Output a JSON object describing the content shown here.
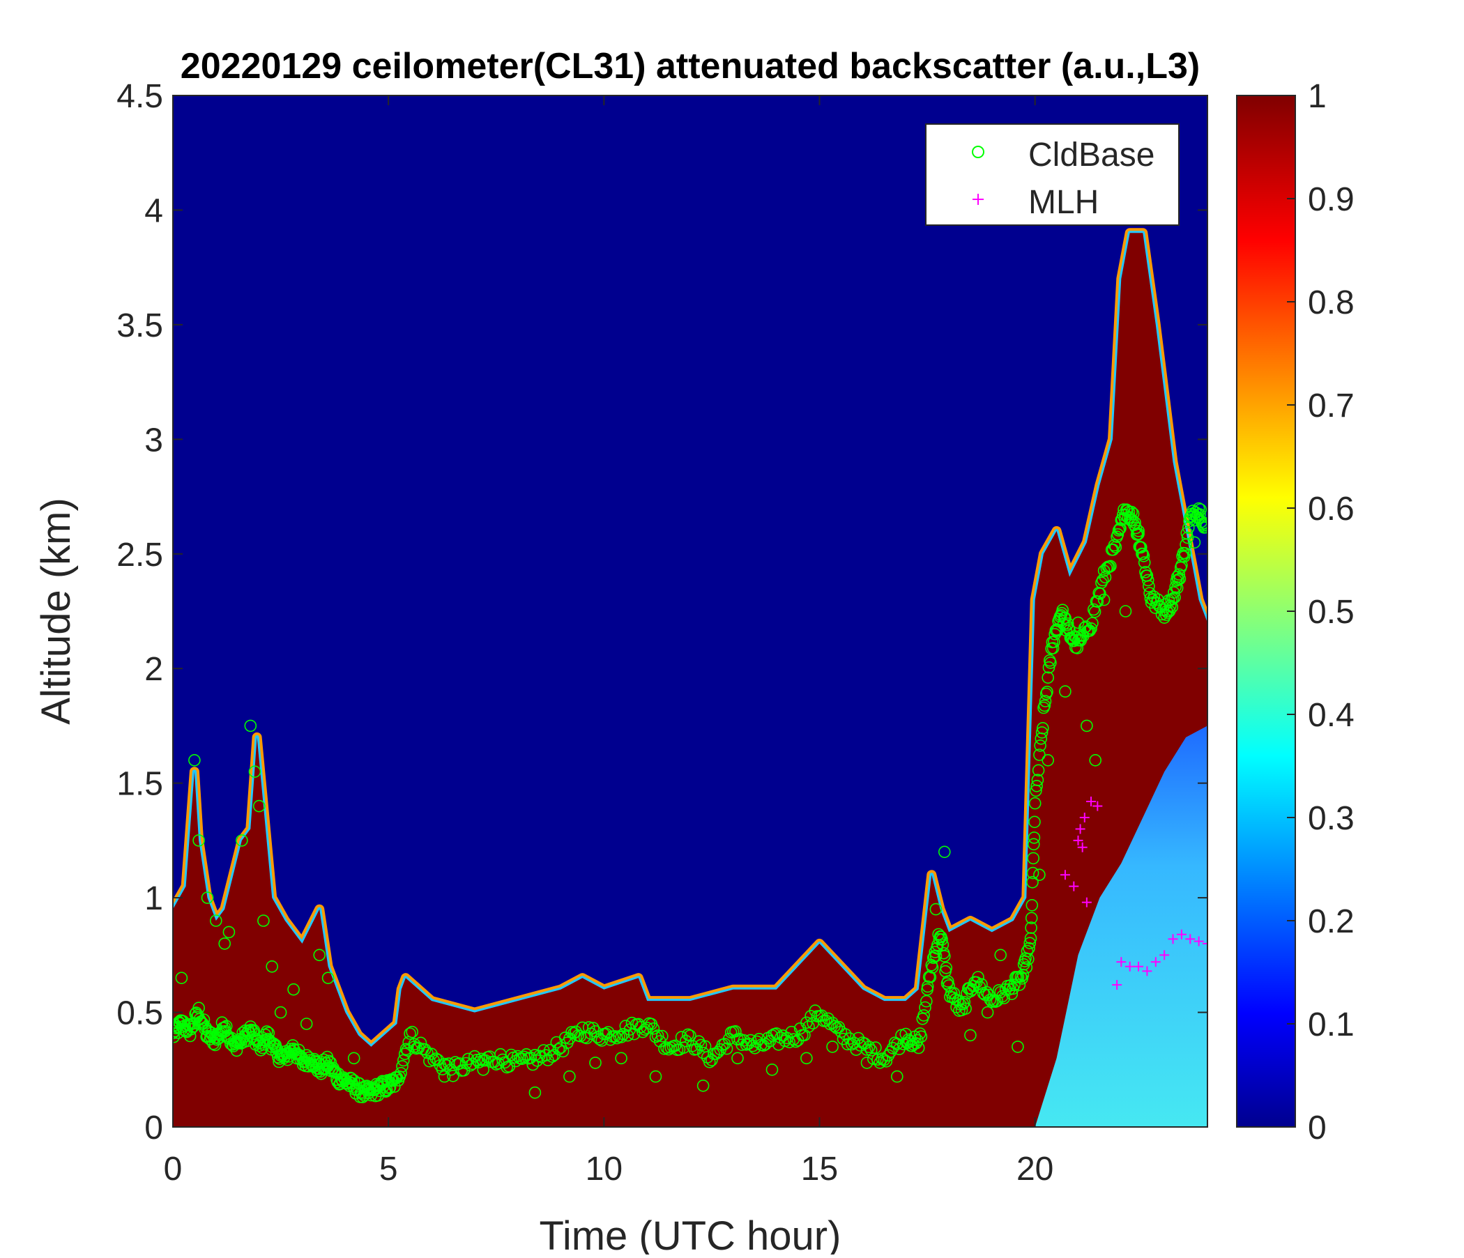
{
  "chart_data": {
    "type": "heatmap",
    "title": "20220129 ceilometer(CL31) attenuated backscatter (a.u.,L3)",
    "xlabel": "Time (UTC hour)",
    "ylabel": "Altitude (km)",
    "xlim": [
      0,
      24
    ],
    "ylim": [
      0,
      4.5
    ],
    "xticks": [
      0,
      5,
      10,
      15,
      20
    ],
    "yticks": [
      0,
      0.5,
      1,
      1.5,
      2,
      2.5,
      3,
      3.5,
      4,
      4.5
    ],
    "yticklabels": [
      "0",
      "0.5",
      "1",
      "1.5",
      "2",
      "2.5",
      "3",
      "3.5",
      "4",
      "4.5"
    ],
    "colorbar": {
      "colormap": "jet",
      "range": [
        0,
        1
      ],
      "ticks": [
        0,
        0.1,
        0.2,
        0.3,
        0.4,
        0.5,
        0.6,
        0.7,
        0.8,
        0.9,
        1
      ],
      "ticklabels": [
        "0",
        "0.1",
        "0.2",
        "0.3",
        "0.4",
        "0.5",
        "0.6",
        "0.7",
        "0.8",
        "0.9",
        "1"
      ]
    },
    "colors": {
      "background": "#00008f",
      "layer": "#800000",
      "cldbase": "#00ff00",
      "mlh": "#ff00ff",
      "cyan_low": "#40e0f0"
    },
    "legend": {
      "placement": "top-right",
      "entries": [
        {
          "label": "CldBase",
          "marker": "circle",
          "color": "#00ff00"
        },
        {
          "label": "MLH",
          "marker": "plus",
          "color": "#ff00ff"
        }
      ]
    },
    "layer_top": {
      "x": [
        0,
        0.3,
        0.5,
        0.6,
        0.8,
        1.0,
        1.2,
        1.4,
        1.6,
        1.8,
        1.95,
        2.1,
        2.3,
        2.6,
        3.0,
        3.4,
        3.6,
        4.0,
        4.3,
        4.6,
        4.9,
        5.2,
        5.3,
        5.4,
        6,
        7,
        8,
        9,
        9.5,
        10,
        10.8,
        11,
        12,
        13,
        14,
        14.5,
        15,
        15.5,
        16,
        16.5,
        17,
        17.3,
        17.6,
        17.8,
        18,
        18.5,
        19,
        19.5,
        19.8,
        20.0,
        20.2,
        20.5,
        20.8,
        21.2,
        21.5,
        21.8,
        22.0,
        22.2,
        22.5,
        22.8,
        23.0,
        23.2,
        23.5,
        23.8,
        24
      ],
      "y": [
        0.95,
        1.05,
        1.55,
        1.25,
        1.0,
        0.9,
        0.95,
        1.1,
        1.25,
        1.3,
        1.7,
        1.4,
        1.0,
        0.9,
        0.8,
        0.95,
        0.7,
        0.5,
        0.4,
        0.35,
        0.4,
        0.45,
        0.6,
        0.65,
        0.55,
        0.5,
        0.55,
        0.6,
        0.65,
        0.6,
        0.65,
        0.55,
        0.55,
        0.6,
        0.6,
        0.7,
        0.8,
        0.7,
        0.6,
        0.55,
        0.55,
        0.6,
        1.1,
        0.95,
        0.85,
        0.9,
        0.85,
        0.9,
        1.0,
        2.3,
        2.5,
        2.6,
        2.4,
        2.55,
        2.8,
        3.0,
        3.7,
        3.9,
        3.9,
        3.5,
        3.2,
        2.9,
        2.6,
        2.3,
        2.2
      ]
    },
    "layer_bottom_right": {
      "x": [
        20.0,
        20.5,
        21.0,
        21.5,
        22.0,
        22.5,
        23.0,
        23.5,
        24
      ],
      "y": [
        0.0,
        0.3,
        0.75,
        1.0,
        1.15,
        1.35,
        1.55,
        1.7,
        1.75
      ]
    },
    "cldbase_trace": {
      "x": [
        0,
        0.2,
        0.4,
        0.6,
        0.8,
        1.0,
        1.2,
        1.4,
        1.6,
        1.8,
        2.0,
        2.2,
        2.4,
        2.6,
        2.8,
        3.0,
        3.2,
        3.4,
        3.6,
        3.8,
        4.0,
        4.2,
        4.4,
        4.6,
        4.8,
        5.0,
        5.2,
        5.5,
        6.0,
        6.5,
        7.0,
        7.5,
        8.0,
        8.5,
        9.0,
        9.5,
        10.0,
        10.5,
        11.0,
        11.5,
        12.0,
        12.5,
        13.0,
        13.5,
        14.0,
        14.5,
        15.0,
        15.5,
        16.0,
        16.5,
        17.0,
        17.3,
        17.6,
        17.8,
        18.0,
        18.3,
        18.6,
        19.0,
        19.4,
        19.7,
        19.9,
        20.0,
        20.2,
        20.4,
        20.6,
        20.8,
        21.0,
        21.3,
        21.6,
        21.9,
        22.1,
        22.3,
        22.5,
        22.7,
        23.0,
        23.2,
        23.4,
        23.6,
        23.8,
        24.0
      ],
      "y": [
        0.4,
        0.45,
        0.42,
        0.5,
        0.4,
        0.38,
        0.45,
        0.35,
        0.38,
        0.42,
        0.35,
        0.4,
        0.32,
        0.3,
        0.35,
        0.28,
        0.3,
        0.25,
        0.28,
        0.22,
        0.2,
        0.18,
        0.15,
        0.15,
        0.17,
        0.18,
        0.2,
        0.4,
        0.3,
        0.25,
        0.28,
        0.3,
        0.28,
        0.3,
        0.35,
        0.42,
        0.4,
        0.42,
        0.45,
        0.35,
        0.38,
        0.3,
        0.4,
        0.35,
        0.38,
        0.4,
        0.5,
        0.4,
        0.35,
        0.3,
        0.4,
        0.35,
        0.7,
        0.85,
        0.6,
        0.5,
        0.65,
        0.55,
        0.6,
        0.65,
        0.8,
        1.4,
        1.8,
        2.1,
        2.25,
        2.15,
        2.1,
        2.2,
        2.4,
        2.55,
        2.7,
        2.65,
        2.5,
        2.3,
        2.25,
        2.3,
        2.45,
        2.65,
        2.7,
        2.6
      ]
    },
    "cldbase_scatter_sample": {
      "x": [
        0.2,
        0.5,
        0.6,
        0.8,
        1.0,
        1.2,
        1.3,
        1.6,
        1.8,
        1.9,
        2.0,
        2.1,
        2.3,
        2.5,
        2.8,
        3.1,
        3.4,
        3.6,
        4.2,
        5.6,
        6.3,
        7.2,
        8.4,
        9.2,
        9.8,
        10.4,
        11.2,
        12.3,
        13.1,
        13.9,
        14.7,
        15.3,
        16.1,
        16.8,
        17.5,
        17.7,
        17.9,
        18.5,
        18.9,
        19.2,
        19.6,
        20.1,
        20.3,
        20.7,
        21.0,
        21.2,
        21.4,
        21.6,
        22.1,
        22.4,
        23.3,
        23.7
      ],
      "y": [
        0.65,
        1.6,
        1.25,
        1.0,
        0.9,
        0.8,
        0.85,
        1.25,
        1.75,
        1.55,
        1.4,
        0.9,
        0.7,
        0.5,
        0.6,
        0.45,
        0.75,
        0.65,
        0.3,
        0.35,
        0.22,
        0.25,
        0.15,
        0.22,
        0.28,
        0.3,
        0.22,
        0.18,
        0.3,
        0.25,
        0.3,
        0.35,
        0.28,
        0.22,
        0.6,
        0.95,
        1.2,
        0.4,
        0.5,
        0.75,
        0.35,
        1.1,
        1.6,
        1.9,
        2.2,
        1.75,
        1.6,
        2.3,
        2.25,
        2.6,
        2.4,
        2.55
      ]
    },
    "mlh_points": {
      "x": [
        20.7,
        20.9,
        21.0,
        21.05,
        21.1,
        21.15,
        21.2,
        21.3,
        21.45,
        21.9,
        22.0,
        22.2,
        22.4,
        22.6,
        22.8,
        23.0,
        23.2,
        23.4,
        23.6,
        23.8,
        24.0
      ],
      "y": [
        1.1,
        1.05,
        1.25,
        1.3,
        1.22,
        1.35,
        0.98,
        1.42,
        1.4,
        0.62,
        0.72,
        0.7,
        0.7,
        0.68,
        0.72,
        0.75,
        0.82,
        0.84,
        0.82,
        0.81,
        0.8
      ]
    }
  }
}
